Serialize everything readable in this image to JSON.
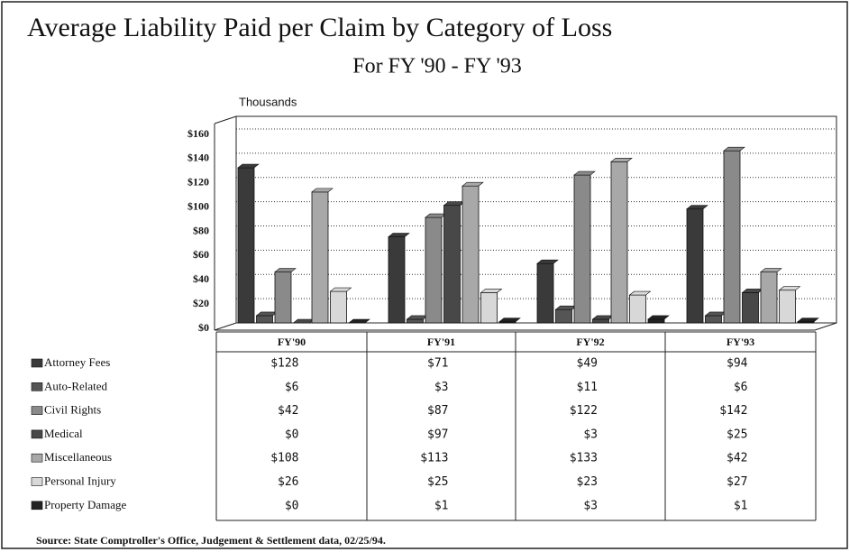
{
  "chart_data": {
    "type": "bar",
    "title": "Average Liability Paid per Claim by Category of Loss",
    "subtitle": "For FY '90 - FY '93",
    "y_unit_label": "Thousands",
    "source": "Source: State Comptroller's Office, Judgement & Settlement data, 02/25/94.",
    "categories": [
      "FY'90",
      "FY'91",
      "FY'92",
      "FY'93"
    ],
    "ylim": [
      0,
      160
    ],
    "yticks": [
      {
        "value": 0,
        "label": "$0"
      },
      {
        "value": 20,
        "label": "$20"
      },
      {
        "value": 40,
        "label": "$40"
      },
      {
        "value": 60,
        "label": "$60"
      },
      {
        "value": 80,
        "label": "$80"
      },
      {
        "value": 100,
        "label": "$100"
      },
      {
        "value": 120,
        "label": "$120"
      },
      {
        "value": 140,
        "label": "$140"
      },
      {
        "value": 160,
        "label": "$160"
      }
    ],
    "grid": true,
    "series": [
      {
        "name": "Attorney Fees",
        "color": "#3a3a3a",
        "values": [
          128,
          71,
          49,
          94
        ],
        "value_labels": [
          "$128",
          "$71",
          "$49",
          "$94"
        ]
      },
      {
        "name": "Auto-Related",
        "color": "#555555",
        "values": [
          6,
          3,
          11,
          6
        ],
        "value_labels": [
          "$6",
          "$3",
          "$11",
          "$6"
        ]
      },
      {
        "name": "Civil Rights",
        "color": "#8a8a8a",
        "values": [
          42,
          87,
          122,
          142
        ],
        "value_labels": [
          "$42",
          "$87",
          "$122",
          "$142"
        ]
      },
      {
        "name": "Medical",
        "color": "#484848",
        "values": [
          0,
          97,
          3,
          25
        ],
        "value_labels": [
          "$0",
          "$97",
          "$3",
          "$25"
        ]
      },
      {
        "name": "Miscellaneous",
        "color": "#a8a8a8",
        "values": [
          108,
          113,
          133,
          42
        ],
        "value_labels": [
          "$108",
          "$113",
          "$133",
          "$42"
        ]
      },
      {
        "name": "Personal Injury",
        "color": "#d8d8d8",
        "values": [
          26,
          25,
          23,
          27
        ],
        "value_labels": [
          "$26",
          "$25",
          "$23",
          "$27"
        ]
      },
      {
        "name": "Property Damage",
        "color": "#222222",
        "values": [
          0,
          1,
          3,
          1
        ],
        "value_labels": [
          "$0",
          "$1",
          "$3",
          "$1"
        ]
      }
    ]
  }
}
